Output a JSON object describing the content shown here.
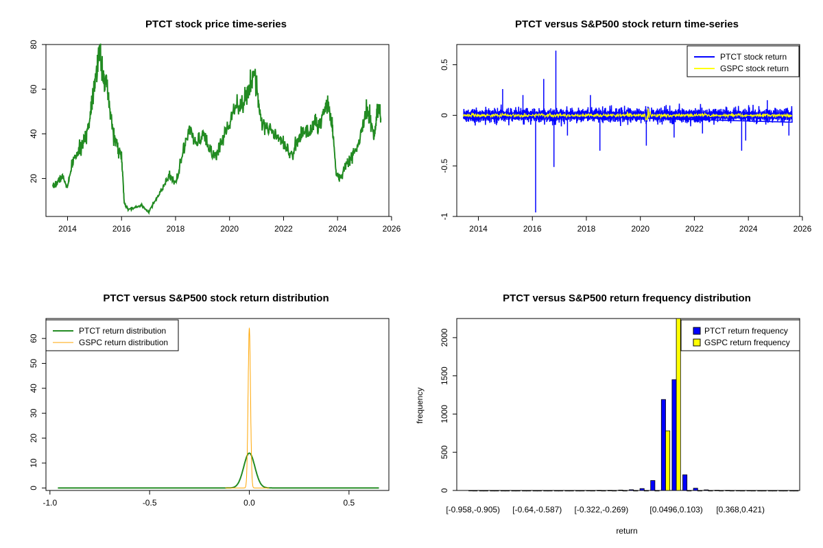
{
  "colors": {
    "price": "#228B22",
    "ptct_return": "#0000FF",
    "gspc_return": "#FFFF00",
    "ptct_density": "#228B22",
    "gspc_density": "#FFA500",
    "ptct_hist": "#0000FF",
    "gspc_hist": "#FFFF00"
  },
  "chart_data": [
    {
      "type": "line",
      "title": "PTCT stock price time-series",
      "xlabel": "",
      "ylabel": "",
      "xlim": [
        2013.2,
        2025.9
      ],
      "ylim": [
        3,
        80
      ],
      "xticks": [
        2014,
        2016,
        2018,
        2020,
        2022,
        2024,
        2026
      ],
      "yticks": [
        20,
        40,
        60,
        80
      ],
      "series": [
        {
          "x": [
            2013.45,
            2013.6,
            2013.8,
            2014.0,
            2014.2,
            2014.4,
            2014.6,
            2014.8,
            2014.95,
            2015.1,
            2015.2,
            2015.3,
            2015.45,
            2015.55,
            2015.7,
            2015.85,
            2016.0,
            2016.1,
            2016.25,
            2016.5,
            2016.75,
            2017.0,
            2017.25,
            2017.5,
            2017.75,
            2018.0,
            2018.25,
            2018.5,
            2018.75,
            2019.0,
            2019.25,
            2019.5,
            2019.75,
            2020.0,
            2020.25,
            2020.5,
            2020.75,
            2020.95,
            2021.15,
            2021.4,
            2021.65,
            2021.9,
            2022.1,
            2022.35,
            2022.55,
            2022.75,
            2022.95,
            2023.15,
            2023.35,
            2023.6,
            2023.8,
            2023.95,
            2024.1,
            2024.3,
            2024.5,
            2024.7,
            2024.9,
            2025.05,
            2025.2,
            2025.35,
            2025.5,
            2025.6
          ],
          "values": [
            16,
            18,
            21,
            16,
            28,
            32,
            36,
            45,
            60,
            70,
            76,
            68,
            61,
            52,
            40,
            34,
            30,
            9,
            6,
            7,
            8,
            5,
            10,
            15,
            21,
            18,
            30,
            42,
            35,
            40,
            33,
            30,
            38,
            45,
            55,
            52,
            62,
            68,
            47,
            42,
            41,
            38,
            34,
            30,
            39,
            41,
            40,
            46,
            43,
            55,
            45,
            22,
            20,
            26,
            29,
            33,
            41,
            50,
            48,
            38,
            52,
            47
          ]
        }
      ]
    },
    {
      "type": "line",
      "title": "PTCT versus S&P500 stock return time-series",
      "xlabel": "",
      "ylabel": "",
      "xlim": [
        2013.2,
        2025.9
      ],
      "ylim": [
        -1.0,
        0.7
      ],
      "xticks": [
        2014,
        2016,
        2018,
        2020,
        2022,
        2024,
        2026
      ],
      "yticks": [
        -1.0,
        -0.5,
        0.0,
        0.5
      ],
      "legend": {
        "position": "top-right",
        "entries": [
          "PTCT stock return",
          "GSPC stock return"
        ]
      },
      "spikes": [
        {
          "x": 2016.12,
          "value": -0.96
        },
        {
          "x": 2016.87,
          "value": 0.64
        },
        {
          "x": 2016.8,
          "value": -0.51
        },
        {
          "x": 2016.42,
          "value": 0.36
        },
        {
          "x": 2018.5,
          "value": -0.35
        },
        {
          "x": 2020.22,
          "value": -0.3
        },
        {
          "x": 2023.75,
          "value": -0.35
        },
        {
          "x": 2014.9,
          "value": 0.26
        },
        {
          "x": 2015.65,
          "value": 0.2
        },
        {
          "x": 2017.3,
          "value": -0.2
        },
        {
          "x": 2018.15,
          "value": 0.2
        },
        {
          "x": 2021.25,
          "value": -0.22
        },
        {
          "x": 2022.3,
          "value": -0.18
        },
        {
          "x": 2023.9,
          "value": -0.25
        },
        {
          "x": 2024.7,
          "value": 0.15
        },
        {
          "x": 2025.5,
          "value": -0.2
        }
      ]
    },
    {
      "type": "line",
      "title": "PTCT versus S&P500 stock return distribution",
      "xlabel": "",
      "ylabel": "",
      "xlim": [
        -1.02,
        0.7
      ],
      "ylim": [
        -1,
        68
      ],
      "xticks": [
        -1.0,
        -0.5,
        0.0,
        0.5
      ],
      "xtick_labels": [
        "-1.0",
        "-0.5",
        "0.0",
        "0.5"
      ],
      "yticks": [
        0,
        10,
        20,
        30,
        40,
        50,
        60
      ],
      "legend": {
        "position": "top-left",
        "entries": [
          "PTCT return distribution",
          "GSPC return distribution"
        ]
      },
      "series": [
        {
          "name": "PTCT return distribution",
          "range": [
            -0.96,
            0.65
          ],
          "peak": 14,
          "sd": 0.028
        },
        {
          "name": "GSPC return distribution",
          "range": [
            -0.12,
            0.1
          ],
          "peak": 64,
          "sd": 0.006
        }
      ]
    },
    {
      "type": "bar",
      "title": "PTCT versus S&P500 return frequency distribution",
      "xlabel": "return",
      "ylabel": "frequency",
      "ylim": [
        0,
        2250
      ],
      "yticks": [
        0,
        500,
        1000,
        1500,
        2000
      ],
      "legend": {
        "position": "top-right",
        "entries": [
          "PTCT return frequency",
          "GSPC return frequency"
        ]
      },
      "tick_labels": [
        {
          "index": 0,
          "label": "[-0.958,-0.905)"
        },
        {
          "index": 6,
          "label": "[-0.64,-0.587)"
        },
        {
          "index": 12,
          "label": "[-0.322,-0.269)"
        },
        {
          "index": 19,
          "label": "[0.0496,0.103)"
        },
        {
          "index": 25,
          "label": "[0.368,0.421)"
        }
      ],
      "series": [
        {
          "name": "PTCT return frequency",
          "values": [
            1,
            0,
            0,
            0,
            0,
            0,
            0,
            0,
            0,
            0,
            0,
            1,
            2,
            2,
            5,
            10,
            25,
            130,
            1190,
            1450,
            205,
            30,
            8,
            3,
            2,
            1,
            1,
            0,
            0,
            0,
            0
          ]
        },
        {
          "name": "GSPC return frequency",
          "values": [
            0,
            0,
            0,
            0,
            0,
            0,
            0,
            0,
            0,
            0,
            0,
            0,
            0,
            0,
            0,
            0,
            0,
            0,
            780,
            2300,
            0,
            0,
            0,
            0,
            0,
            0,
            0,
            0,
            0,
            0,
            0
          ]
        }
      ]
    }
  ]
}
